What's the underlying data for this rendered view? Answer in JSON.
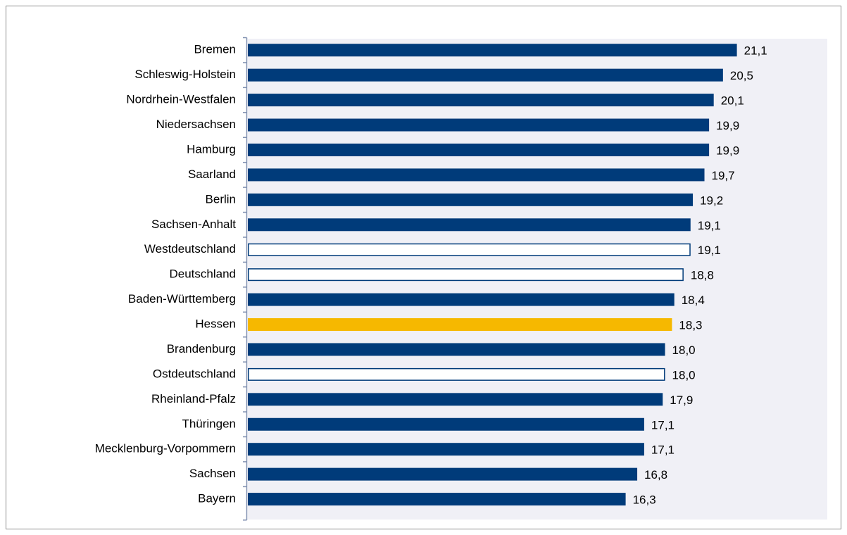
{
  "chart_data": {
    "type": "barh",
    "categories": [
      "Bremen",
      "Schleswig-Holstein",
      "Nordrhein-Westfalen",
      "Niedersachsen",
      "Hamburg",
      "Saarland",
      "Berlin",
      "Sachsen-Anhalt",
      "Westdeutschland",
      "Deutschland",
      "Baden-Württemberg",
      "Hessen",
      "Brandenburg",
      "Ostdeutschland",
      "Rheinland-Pfalz",
      "Thüringen",
      "Mecklenburg-Vorpommern",
      "Sachsen",
      "Bayern"
    ],
    "values": [
      21.1,
      20.5,
      20.1,
      19.9,
      19.9,
      19.7,
      19.2,
      19.1,
      19.1,
      18.8,
      18.4,
      18.3,
      18.0,
      18.0,
      17.9,
      17.1,
      17.1,
      16.8,
      16.3
    ],
    "value_labels": [
      "21,1",
      "20,5",
      "20,1",
      "19,9",
      "19,9",
      "19,7",
      "19,2",
      "19,1",
      "19,1",
      "18,8",
      "18,4",
      "18,3",
      "18,0",
      "18,0",
      "17,9",
      "17,1",
      "17,1",
      "16,8",
      "16,3"
    ],
    "colors": [
      "#003b7a",
      "#003b7a",
      "#003b7a",
      "#003b7a",
      "#003b7a",
      "#003b7a",
      "#003b7a",
      "#003b7a",
      "#ffffff",
      "#ffffff",
      "#003b7a",
      "#f6b800",
      "#003b7a",
      "#ffffff",
      "#003b7a",
      "#003b7a",
      "#003b7a",
      "#003b7a",
      "#003b7a"
    ],
    "edgecolor": "#003b7a",
    "xlim": [
      0,
      25
    ]
  }
}
